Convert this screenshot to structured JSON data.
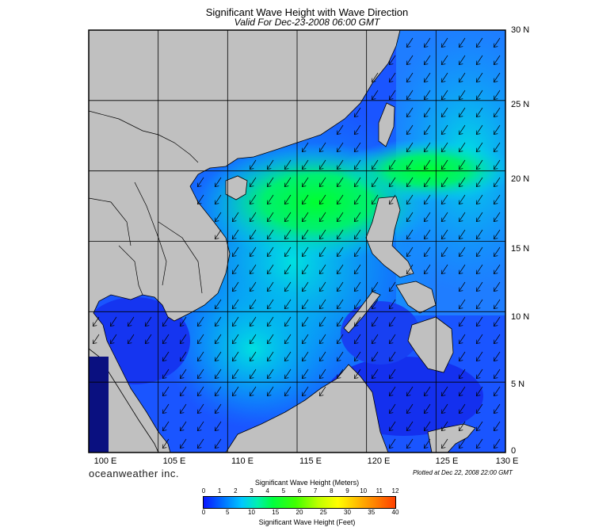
{
  "title": "Significant Wave Height with Wave Direction",
  "subtitle": "Valid For Dec-23-2008 06:00 GMT",
  "map": {
    "lon_labels": [
      "100 E",
      "105 E",
      "110 E",
      "115 E",
      "120 E",
      "125 E",
      "130 E"
    ],
    "lat_labels": [
      "0",
      "5 N",
      "10 N",
      "15 N",
      "20 N",
      "25 N",
      "30 N"
    ],
    "lon_range": [
      100,
      130
    ],
    "lat_range": [
      0,
      30
    ],
    "grid_step_degrees": 5,
    "land_color": "#c0c0c0",
    "wave_direction": "from northeast to southwest"
  },
  "brand": "oceanweather inc.",
  "plotted": "Plotted at Dec 22, 2008 22:00 GMT",
  "colorbar": {
    "title_meters": "Significant Wave Height (Meters)",
    "title_feet": "Significant Wave Height (Feet)",
    "meters_ticks": [
      "0",
      "1",
      "2",
      "3",
      "4",
      "5",
      "6",
      "7",
      "8",
      "9",
      "10",
      "11",
      "12"
    ],
    "feet_ticks": [
      "0",
      "5",
      "10",
      "15",
      "20",
      "25",
      "30",
      "35",
      "40"
    ],
    "colors": [
      "#0a16ff",
      "#0070ff",
      "#00c8ff",
      "#00f0b0",
      "#00ff40",
      "#40ff00",
      "#c0ff00",
      "#ffff00",
      "#ffb000",
      "#ff4000"
    ]
  }
}
